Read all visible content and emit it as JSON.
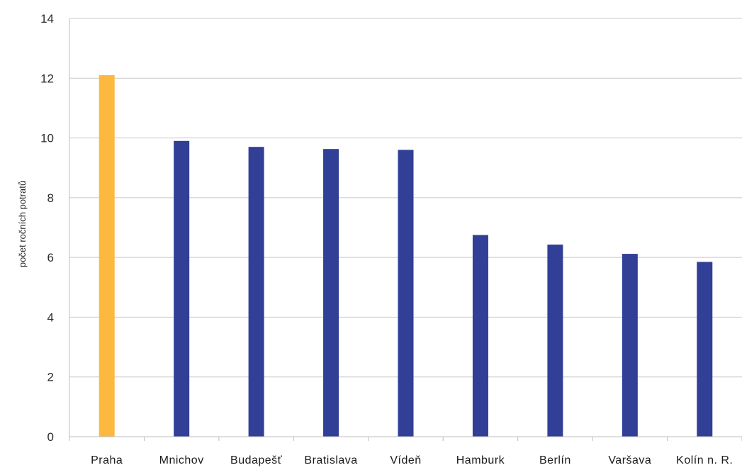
{
  "chart_data": {
    "type": "bar",
    "categories": [
      "Praha",
      "Mnichov",
      "Budapešť",
      "Bratislava",
      "Vídeň",
      "Hamburk",
      "Berlín",
      "Varšava",
      "Kolín n. R."
    ],
    "values": [
      12.1,
      9.9,
      9.7,
      9.63,
      9.6,
      6.75,
      6.43,
      6.12,
      5.85
    ],
    "colors": [
      "#FDB840",
      "#323F96",
      "#323F96",
      "#323F96",
      "#323F96",
      "#323F96",
      "#323F96",
      "#323F96",
      "#323F96"
    ],
    "title": "",
    "xlabel": "",
    "ylabel": "počet ročních potratů",
    "ylim": [
      0,
      14
    ],
    "yticks": [
      0,
      2,
      4,
      6,
      8,
      10,
      12,
      14
    ],
    "grid": true,
    "legend": "none"
  }
}
